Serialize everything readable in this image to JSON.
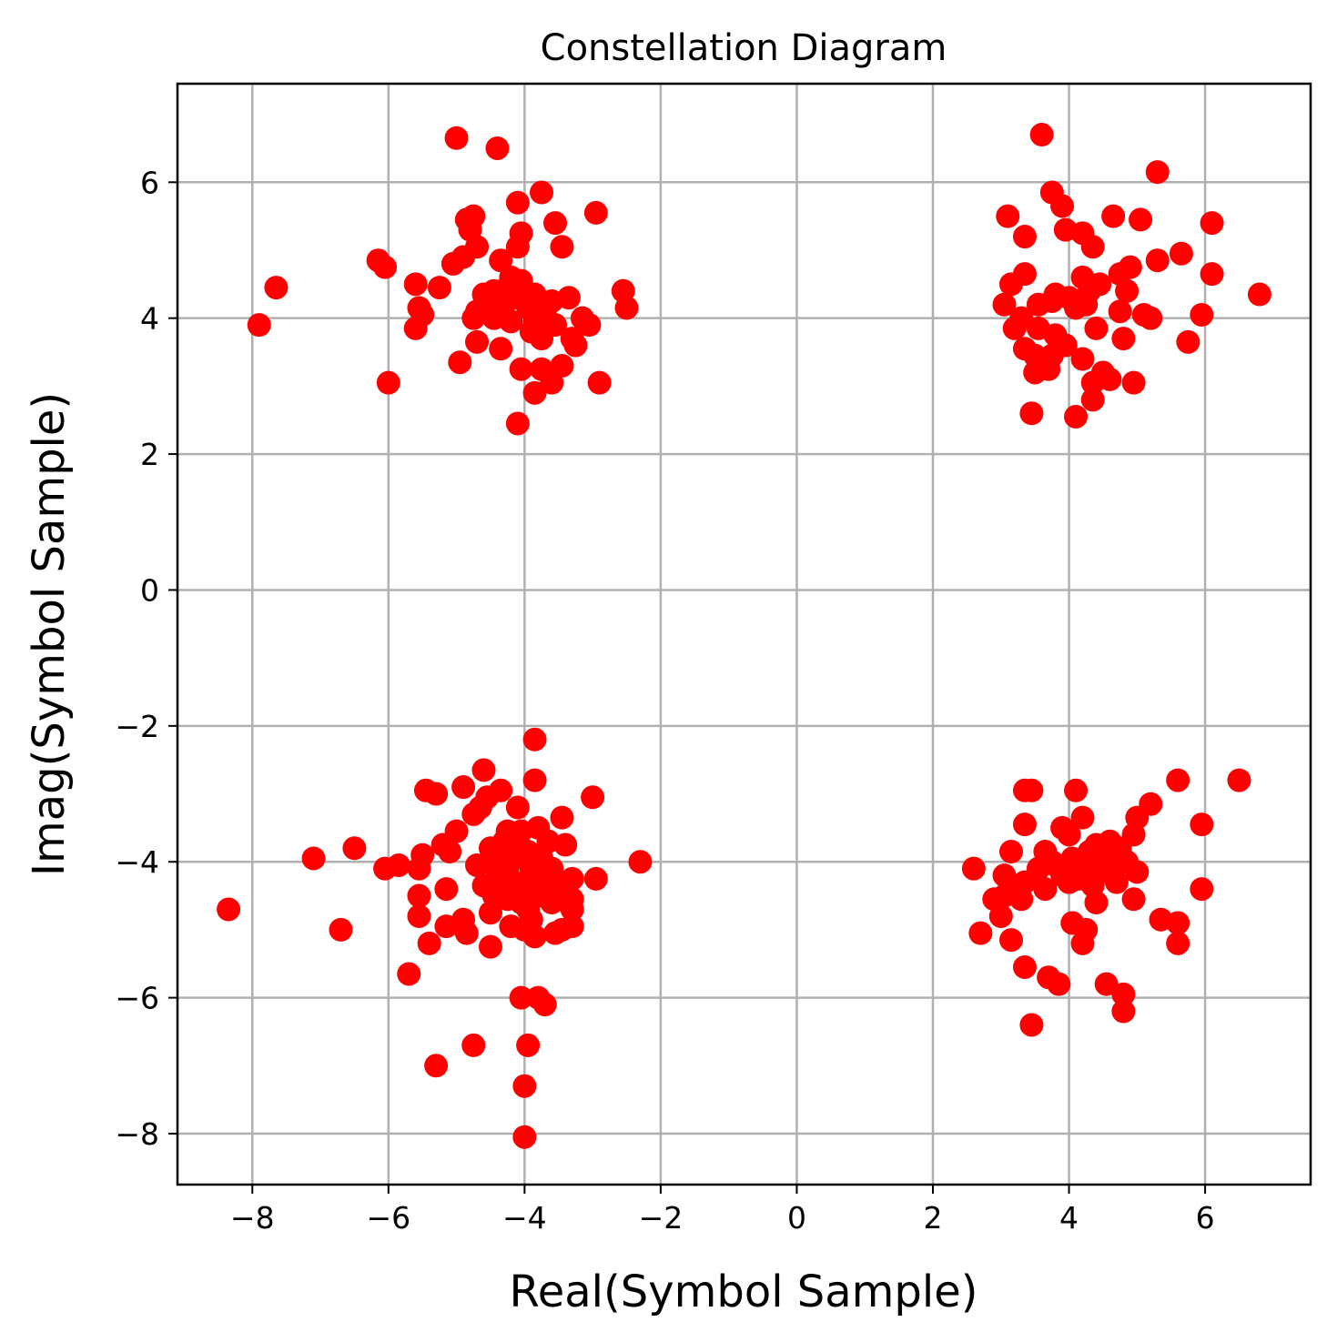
{
  "chart_data": {
    "type": "scatter",
    "title": "Constellation Diagram",
    "xlabel": "Real(Symbol Sample)",
    "ylabel": "Imag(Symbol Sample)",
    "xlim": [
      -9.1,
      7.55
    ],
    "ylim": [
      -8.75,
      7.45
    ],
    "xticks": [
      -8,
      -6,
      -4,
      -2,
      0,
      2,
      4,
      6
    ],
    "yticks": [
      -8,
      -6,
      -4,
      -2,
      0,
      2,
      4,
      6
    ],
    "xtick_labels": [
      "−8",
      "−6",
      "−4",
      "−2",
      "0",
      "2",
      "4",
      "6"
    ],
    "ytick_labels": [
      "−8",
      "−6",
      "−4",
      "−2",
      "0",
      "2",
      "4",
      "6"
    ],
    "grid": true,
    "marker_color": "#ff0000",
    "series": [
      {
        "points": [
          [
            -5.0,
            6.65
          ],
          [
            -4.4,
            6.5
          ],
          [
            -3.75,
            5.85
          ],
          [
            -4.1,
            5.7
          ],
          [
            -2.95,
            5.55
          ],
          [
            -4.85,
            5.45
          ],
          [
            -4.75,
            5.5
          ],
          [
            -3.55,
            5.4
          ],
          [
            -4.05,
            5.25
          ],
          [
            -4.8,
            5.3
          ],
          [
            -4.1,
            5.05
          ],
          [
            -3.45,
            5.05
          ],
          [
            -4.7,
            5.05
          ],
          [
            -4.9,
            4.9
          ],
          [
            -5.05,
            4.8
          ],
          [
            -6.15,
            4.85
          ],
          [
            -6.05,
            4.75
          ],
          [
            -4.35,
            4.85
          ],
          [
            -5.6,
            4.5
          ],
          [
            -5.25,
            4.45
          ],
          [
            -7.65,
            4.45
          ],
          [
            -2.55,
            4.4
          ],
          [
            -4.2,
            4.6
          ],
          [
            -4.05,
            4.55
          ],
          [
            -3.85,
            4.35
          ],
          [
            -3.6,
            4.25
          ],
          [
            -3.35,
            4.3
          ],
          [
            -4.6,
            4.35
          ],
          [
            -4.45,
            4.4
          ],
          [
            -4.3,
            4.2
          ],
          [
            -4.1,
            4.3
          ],
          [
            -3.95,
            4.15
          ],
          [
            -3.7,
            4.1
          ],
          [
            -4.7,
            4.1
          ],
          [
            -5.55,
            4.15
          ],
          [
            -5.5,
            4.05
          ],
          [
            -2.5,
            4.15
          ],
          [
            -3.15,
            4.0
          ],
          [
            -3.05,
            3.9
          ],
          [
            -3.85,
            3.95
          ],
          [
            -3.55,
            3.9
          ],
          [
            -4.2,
            3.95
          ],
          [
            -4.75,
            4.0
          ],
          [
            -3.3,
            3.7
          ],
          [
            -3.75,
            3.7
          ],
          [
            -5.6,
            3.85
          ],
          [
            -7.9,
            3.9
          ],
          [
            -4.7,
            3.65
          ],
          [
            -4.35,
            3.55
          ],
          [
            -3.25,
            3.6
          ],
          [
            -3.45,
            3.3
          ],
          [
            -4.95,
            3.35
          ],
          [
            -3.75,
            3.25
          ],
          [
            -4.05,
            3.25
          ],
          [
            -3.6,
            3.05
          ],
          [
            -2.9,
            3.05
          ],
          [
            -6.0,
            3.05
          ],
          [
            -3.85,
            2.9
          ],
          [
            -4.1,
            2.45
          ],
          [
            -4.45,
            4.0
          ],
          [
            -4.0,
            4.25
          ],
          [
            -4.25,
            4.45
          ],
          [
            -3.9,
            3.8
          ],
          [
            -4.5,
            4.2
          ],
          [
            3.6,
            6.7
          ],
          [
            5.3,
            6.15
          ],
          [
            3.75,
            5.85
          ],
          [
            3.9,
            5.65
          ],
          [
            4.65,
            5.5
          ],
          [
            5.05,
            5.45
          ],
          [
            3.1,
            5.5
          ],
          [
            6.1,
            5.4
          ],
          [
            3.95,
            5.3
          ],
          [
            4.2,
            5.25
          ],
          [
            5.65,
            4.95
          ],
          [
            3.35,
            5.2
          ],
          [
            4.35,
            5.05
          ],
          [
            5.3,
            4.85
          ],
          [
            4.9,
            4.75
          ],
          [
            4.75,
            4.65
          ],
          [
            3.35,
            4.65
          ],
          [
            6.1,
            4.65
          ],
          [
            3.15,
            4.5
          ],
          [
            4.2,
            4.6
          ],
          [
            4.45,
            4.5
          ],
          [
            4.3,
            4.4
          ],
          [
            6.8,
            4.35
          ],
          [
            3.8,
            4.35
          ],
          [
            4.0,
            4.3
          ],
          [
            4.25,
            4.2
          ],
          [
            4.1,
            4.15
          ],
          [
            3.75,
            4.25
          ],
          [
            3.55,
            4.2
          ],
          [
            3.05,
            4.2
          ],
          [
            4.85,
            4.4
          ],
          [
            4.75,
            4.1
          ],
          [
            5.1,
            4.05
          ],
          [
            5.2,
            4.0
          ],
          [
            5.95,
            4.05
          ],
          [
            3.3,
            4.0
          ],
          [
            3.2,
            3.85
          ],
          [
            3.55,
            3.85
          ],
          [
            3.8,
            3.75
          ],
          [
            4.4,
            3.85
          ],
          [
            5.75,
            3.65
          ],
          [
            4.8,
            3.7
          ],
          [
            3.35,
            3.55
          ],
          [
            3.95,
            3.6
          ],
          [
            3.75,
            3.45
          ],
          [
            4.2,
            3.4
          ],
          [
            3.5,
            3.45
          ],
          [
            4.5,
            3.2
          ],
          [
            3.7,
            3.25
          ],
          [
            3.5,
            3.2
          ],
          [
            4.6,
            3.1
          ],
          [
            4.35,
            3.05
          ],
          [
            4.95,
            3.05
          ],
          [
            4.35,
            2.8
          ],
          [
            3.45,
            2.6
          ],
          [
            4.1,
            2.55
          ],
          [
            -3.85,
            -2.2
          ],
          [
            -3.85,
            -2.8
          ],
          [
            -4.6,
            -2.65
          ],
          [
            -4.9,
            -2.9
          ],
          [
            -5.45,
            -2.95
          ],
          [
            -5.3,
            -3.0
          ],
          [
            -4.35,
            -2.95
          ],
          [
            -4.55,
            -3.05
          ],
          [
            -3.0,
            -3.05
          ],
          [
            -4.1,
            -3.2
          ],
          [
            -4.65,
            -3.2
          ],
          [
            -4.75,
            -3.3
          ],
          [
            -3.45,
            -3.35
          ],
          [
            -3.8,
            -3.5
          ],
          [
            -4.05,
            -3.55
          ],
          [
            -4.25,
            -3.55
          ],
          [
            -5.0,
            -3.55
          ],
          [
            -3.65,
            -3.7
          ],
          [
            -3.4,
            -3.75
          ],
          [
            -4.5,
            -3.8
          ],
          [
            -4.15,
            -3.8
          ],
          [
            -3.95,
            -3.85
          ],
          [
            -4.35,
            -3.9
          ],
          [
            -5.2,
            -3.75
          ],
          [
            -5.1,
            -3.85
          ],
          [
            -5.5,
            -3.9
          ],
          [
            -6.5,
            -3.8
          ],
          [
            -7.1,
            -3.95
          ],
          [
            -3.75,
            -3.95
          ],
          [
            -4.45,
            -4.0
          ],
          [
            -4.25,
            -4.1
          ],
          [
            -3.9,
            -4.1
          ],
          [
            -3.6,
            -4.1
          ],
          [
            -4.7,
            -4.05
          ],
          [
            -5.85,
            -4.05
          ],
          [
            -6.05,
            -4.1
          ],
          [
            -2.3,
            -4.0
          ],
          [
            -5.55,
            -4.1
          ],
          [
            -3.75,
            -4.25
          ],
          [
            -4.0,
            -4.3
          ],
          [
            -4.25,
            -4.35
          ],
          [
            -3.55,
            -4.35
          ],
          [
            -3.3,
            -4.25
          ],
          [
            -2.95,
            -4.25
          ],
          [
            -4.6,
            -4.35
          ],
          [
            -4.45,
            -4.5
          ],
          [
            -5.15,
            -4.4
          ],
          [
            -3.8,
            -4.5
          ],
          [
            -4.25,
            -4.55
          ],
          [
            -4.05,
            -4.6
          ],
          [
            -3.55,
            -4.5
          ],
          [
            -3.3,
            -4.55
          ],
          [
            -5.55,
            -4.5
          ],
          [
            -8.35,
            -4.7
          ],
          [
            -4.5,
            -4.75
          ],
          [
            -3.3,
            -4.7
          ],
          [
            -3.95,
            -4.7
          ],
          [
            -5.55,
            -4.8
          ],
          [
            -4.9,
            -4.85
          ],
          [
            -3.9,
            -4.85
          ],
          [
            -5.15,
            -4.95
          ],
          [
            -3.3,
            -4.95
          ],
          [
            -4.2,
            -4.95
          ],
          [
            -4.0,
            -5.0
          ],
          [
            -3.45,
            -5.0
          ],
          [
            -3.55,
            -5.05
          ],
          [
            -6.7,
            -5.0
          ],
          [
            -4.85,
            -5.05
          ],
          [
            -3.85,
            -5.1
          ],
          [
            -5.4,
            -5.2
          ],
          [
            -4.5,
            -5.25
          ],
          [
            -5.7,
            -5.65
          ],
          [
            -4.05,
            -6.0
          ],
          [
            -3.8,
            -6.0
          ],
          [
            -3.7,
            -6.1
          ],
          [
            -4.75,
            -6.7
          ],
          [
            -3.95,
            -6.7
          ],
          [
            -5.3,
            -7.0
          ],
          [
            -4.0,
            -7.3
          ],
          [
            -4.0,
            -8.05
          ],
          [
            -4.3,
            -3.7
          ],
          [
            -4.0,
            -3.95
          ],
          [
            -4.4,
            -4.2
          ],
          [
            -3.7,
            -4.35
          ],
          [
            -4.15,
            -4.45
          ],
          [
            -3.6,
            -4.6
          ],
          [
            6.5,
            -2.8
          ],
          [
            5.6,
            -2.8
          ],
          [
            3.35,
            -2.95
          ],
          [
            3.45,
            -2.95
          ],
          [
            4.1,
            -2.95
          ],
          [
            5.2,
            -3.15
          ],
          [
            4.2,
            -3.35
          ],
          [
            5.0,
            -3.35
          ],
          [
            5.95,
            -3.45
          ],
          [
            3.35,
            -3.45
          ],
          [
            3.9,
            -3.5
          ],
          [
            4.0,
            -3.6
          ],
          [
            4.95,
            -3.6
          ],
          [
            4.6,
            -3.7
          ],
          [
            4.4,
            -3.75
          ],
          [
            4.75,
            -3.8
          ],
          [
            3.65,
            -3.85
          ],
          [
            3.15,
            -3.85
          ],
          [
            4.3,
            -3.85
          ],
          [
            4.55,
            -3.95
          ],
          [
            4.85,
            -4.0
          ],
          [
            3.75,
            -4.0
          ],
          [
            4.05,
            -3.95
          ],
          [
            4.45,
            -4.0
          ],
          [
            2.6,
            -4.1
          ],
          [
            4.3,
            -4.1
          ],
          [
            5.0,
            -4.15
          ],
          [
            3.9,
            -4.2
          ],
          [
            3.05,
            -4.2
          ],
          [
            3.5,
            -4.25
          ],
          [
            4.7,
            -4.3
          ],
          [
            3.35,
            -4.3
          ],
          [
            4.0,
            -4.3
          ],
          [
            4.35,
            -4.35
          ],
          [
            3.65,
            -4.4
          ],
          [
            3.2,
            -4.45
          ],
          [
            5.95,
            -4.4
          ],
          [
            3.05,
            -4.5
          ],
          [
            4.95,
            -4.55
          ],
          [
            2.9,
            -4.55
          ],
          [
            4.4,
            -4.6
          ],
          [
            3.3,
            -4.55
          ],
          [
            5.35,
            -4.85
          ],
          [
            5.6,
            -4.9
          ],
          [
            3.0,
            -4.8
          ],
          [
            4.05,
            -4.9
          ],
          [
            4.25,
            -5.0
          ],
          [
            2.7,
            -5.05
          ],
          [
            3.15,
            -5.15
          ],
          [
            4.2,
            -5.2
          ],
          [
            5.6,
            -5.2
          ],
          [
            3.35,
            -5.55
          ],
          [
            3.7,
            -5.7
          ],
          [
            3.85,
            -5.8
          ],
          [
            4.55,
            -5.8
          ],
          [
            4.8,
            -5.95
          ],
          [
            4.8,
            -6.2
          ],
          [
            3.45,
            -6.4
          ],
          [
            3.8,
            -4.05
          ],
          [
            4.15,
            -4.25
          ],
          [
            4.6,
            -4.15
          ],
          [
            3.55,
            -4.1
          ]
        ]
      }
    ]
  }
}
